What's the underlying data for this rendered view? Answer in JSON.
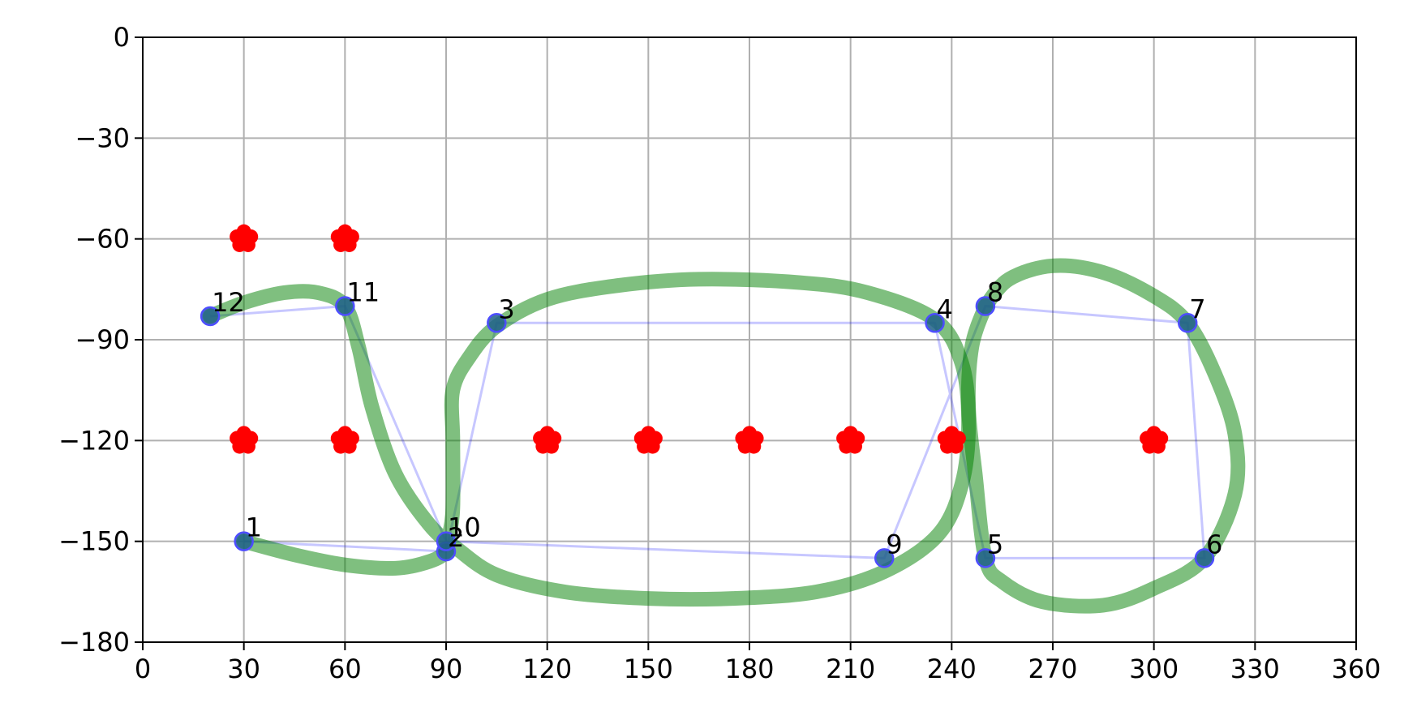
{
  "chart_data": {
    "type": "scatter",
    "title": "",
    "xlabel": "",
    "ylabel": "",
    "xlim": [
      0,
      360
    ],
    "ylim": [
      -180,
      0
    ],
    "xticks": [
      0,
      30,
      60,
      90,
      120,
      150,
      180,
      210,
      240,
      270,
      300,
      330,
      360
    ],
    "yticks": [
      0,
      -30,
      -60,
      -90,
      -120,
      -150,
      -180
    ],
    "xtick_labels": [
      "0",
      "30",
      "60",
      "90",
      "120",
      "150",
      "180",
      "210",
      "240",
      "270",
      "300",
      "330",
      "360"
    ],
    "ytick_labels": [
      "0",
      "−30",
      "−60",
      "−90",
      "−120",
      "−150",
      "−180"
    ],
    "grid": true,
    "legend": null,
    "colors": {
      "waypoint": "#1f5f8a",
      "waypoint_edge": "#4d4dff",
      "polyline": "#0000ff",
      "smooth_path": "#008000",
      "obstacle": "#ff0000",
      "grid": "#b0b0b0"
    },
    "waypoints": [
      {
        "label": "1",
        "x": 30,
        "y": -150
      },
      {
        "label": "2",
        "x": 90,
        "y": -153
      },
      {
        "label": "3",
        "x": 105,
        "y": -85
      },
      {
        "label": "4",
        "x": 235,
        "y": -85
      },
      {
        "label": "5",
        "x": 250,
        "y": -155
      },
      {
        "label": "6",
        "x": 315,
        "y": -155
      },
      {
        "label": "7",
        "x": 310,
        "y": -85
      },
      {
        "label": "8",
        "x": 250,
        "y": -80
      },
      {
        "label": "9",
        "x": 220,
        "y": -155
      },
      {
        "label": "10",
        "x": 90,
        "y": -150
      },
      {
        "label": "11",
        "x": 60,
        "y": -80
      },
      {
        "label": "12",
        "x": 20,
        "y": -83
      }
    ],
    "obstacles": [
      {
        "x": 30,
        "y": -60
      },
      {
        "x": 60,
        "y": -60
      },
      {
        "x": 30,
        "y": -120
      },
      {
        "x": 60,
        "y": -120
      },
      {
        "x": 120,
        "y": -120
      },
      {
        "x": 150,
        "y": -120
      },
      {
        "x": 180,
        "y": -120
      },
      {
        "x": 210,
        "y": -120
      },
      {
        "x": 240,
        "y": -120
      },
      {
        "x": 300,
        "y": -120
      }
    ],
    "smooth_path": [
      [
        30,
        -150
      ],
      [
        45,
        -154
      ],
      [
        60,
        -157
      ],
      [
        75,
        -158
      ],
      [
        85,
        -156
      ],
      [
        90,
        -153
      ],
      [
        91,
        -148
      ],
      [
        92,
        -140
      ],
      [
        92,
        -120
      ],
      [
        92,
        -105
      ],
      [
        97,
        -95
      ],
      [
        105,
        -86
      ],
      [
        120,
        -78
      ],
      [
        140,
        -74
      ],
      [
        165,
        -72
      ],
      [
        195,
        -73
      ],
      [
        215,
        -76
      ],
      [
        235,
        -84
      ],
      [
        243,
        -97
      ],
      [
        245,
        -115
      ],
      [
        243,
        -133
      ],
      [
        236,
        -148
      ],
      [
        220,
        -159
      ],
      [
        200,
        -165
      ],
      [
        175,
        -167
      ],
      [
        150,
        -167
      ],
      [
        125,
        -165
      ],
      [
        105,
        -160
      ],
      [
        93,
        -152
      ],
      [
        85,
        -145
      ],
      [
        75,
        -130
      ],
      [
        68,
        -110
      ],
      [
        64,
        -92
      ],
      [
        60,
        -80
      ],
      [
        52,
        -76
      ],
      [
        42,
        -76
      ],
      [
        30,
        -79
      ],
      [
        20,
        -83
      ]
    ],
    "smooth_path_2": [
      [
        250,
        -80
      ],
      [
        257,
        -72
      ],
      [
        270,
        -68
      ],
      [
        285,
        -70
      ],
      [
        300,
        -77
      ],
      [
        310,
        -85
      ],
      [
        318,
        -100
      ],
      [
        324,
        -118
      ],
      [
        324,
        -136
      ],
      [
        315,
        -155
      ],
      [
        300,
        -164
      ],
      [
        285,
        -169
      ],
      [
        267,
        -168
      ],
      [
        255,
        -162
      ],
      [
        250,
        -155
      ],
      [
        247,
        -130
      ],
      [
        245,
        -110
      ],
      [
        246,
        -92
      ],
      [
        250,
        -80
      ]
    ]
  }
}
